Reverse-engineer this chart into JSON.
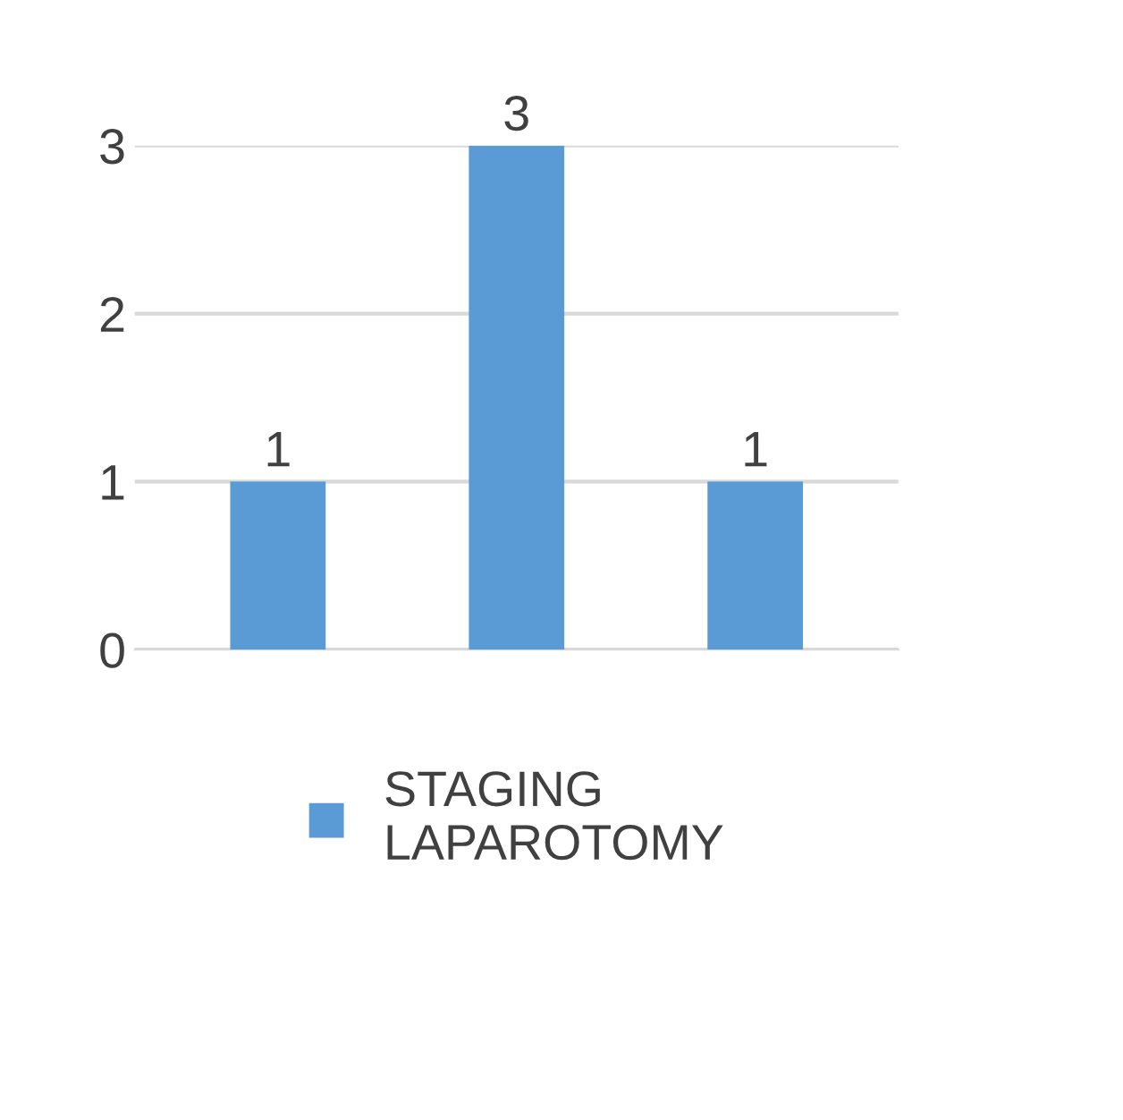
{
  "chart_data": {
    "type": "bar",
    "categories": [
      null,
      null,
      null
    ],
    "series": [
      {
        "name": "STAGING LAPAROTOMY",
        "color": "#5b9bd5",
        "values": [
          1,
          3,
          1
        ]
      }
    ],
    "ylim": [
      0,
      3
    ],
    "yticks": [
      0,
      1,
      2,
      3
    ],
    "grid": "y",
    "legend": "bottom",
    "data_labels": true
  }
}
